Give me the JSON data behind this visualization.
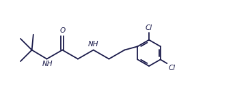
{
  "bg_color": "#ffffff",
  "line_color": "#1a1a4a",
  "line_width": 1.3,
  "font_size": 7.5,
  "label_color": "#1a1a4a",
  "xlim": [
    0.0,
    8.2
  ],
  "ylim": [
    0.5,
    3.2
  ]
}
